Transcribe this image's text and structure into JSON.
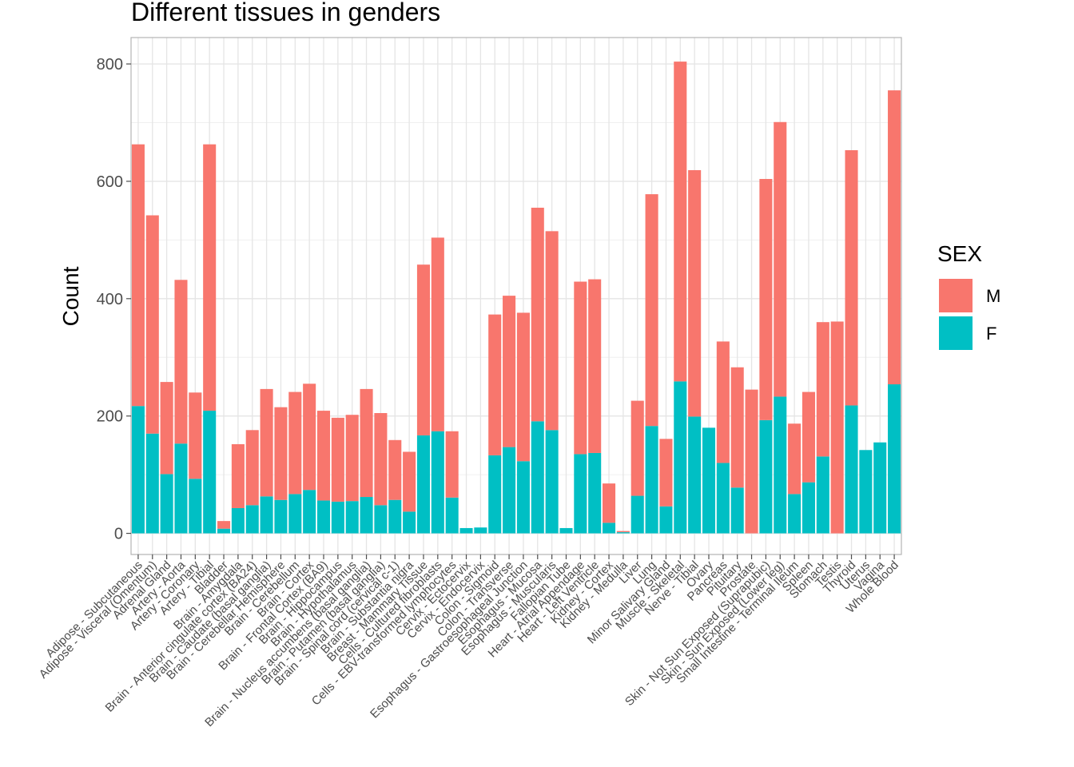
{
  "chart_data": {
    "type": "bar",
    "stacked": true,
    "title": "Different tissues in genders",
    "xlabel": "",
    "ylabel": "Count",
    "ylim": [
      -36,
      845
    ],
    "yticks": [
      0,
      200,
      400,
      600,
      800
    ],
    "grid": true,
    "legend": {
      "title": "SEX",
      "position": "right",
      "entries": [
        {
          "key": "M",
          "label": "M",
          "color": "#F8766D"
        },
        {
          "key": "F",
          "label": "F",
          "color": "#00BFC4"
        }
      ]
    },
    "categories": [
      "Adipose - Subcutaneous",
      "Adipose - Visceral (Omentum)",
      "Adrenal Gland",
      "Artery - Aorta",
      "Artery - Coronary",
      "Artery - Tibial",
      "Bladder",
      "Brain - Amygdala",
      "Brain - Anterior cingulate cortex (BA24)",
      "Brain - Caudate (basal ganglia)",
      "Brain - Cerebellar Hemisphere",
      "Brain - Cerebellum",
      "Brain - Cortex",
      "Brain - Frontal Cortex (BA9)",
      "Brain - Hippocampus",
      "Brain - Hypothalamus",
      "Brain - Nucleus accumbens (basal ganglia)",
      "Brain - Putamen (basal ganglia)",
      "Brain - Spinal cord (cervical c-1)",
      "Brain - Substantia nigra",
      "Breast - Mammary Tissue",
      "Cells - Cultured fibroblasts",
      "Cells - EBV-transformed lymphocytes",
      "Cervix - Ectocervix",
      "Cervix - Endocervix",
      "Colon - Sigmoid",
      "Colon - Transverse",
      "Esophagus - Gastroesophageal Junction",
      "Esophagus - Mucosa",
      "Esophagus - Muscularis",
      "Fallopian Tube",
      "Heart - Atrial Appendage",
      "Heart - Left Ventricle",
      "Kidney - Cortex",
      "Kidney - Medulla",
      "Liver",
      "Lung",
      "Minor Salivary Gland",
      "Muscle - Skeletal",
      "Nerve - Tibial",
      "Ovary",
      "Pancreas",
      "Pituitary",
      "Prostate",
      "Skin - Not Sun Exposed (Suprapubic)",
      "Skin - Sun Exposed (Lower leg)",
      "Small Intestine - Terminal Ileum",
      "Spleen",
      "Stomach",
      "Testis",
      "Thyroid",
      "Uterus",
      "Vagina",
      "Whole Blood"
    ],
    "series": [
      {
        "name": "F",
        "values": [
          217,
          170,
          101,
          153,
          93,
          209,
          8,
          43,
          48,
          63,
          57,
          67,
          74,
          56,
          54,
          55,
          62,
          48,
          57,
          37,
          167,
          174,
          61,
          9,
          10,
          133,
          147,
          123,
          191,
          176,
          9,
          135,
          137,
          18,
          2,
          64,
          183,
          46,
          259,
          199,
          180,
          120,
          78,
          0,
          193,
          233,
          67,
          87,
          131,
          0,
          218,
          142,
          155,
          254
        ]
      },
      {
        "name": "M",
        "values": [
          446,
          372,
          157,
          279,
          147,
          454,
          13,
          109,
          128,
          183,
          158,
          174,
          181,
          153,
          143,
          147,
          184,
          157,
          102,
          102,
          291,
          330,
          113,
          0,
          0,
          240,
          258,
          253,
          364,
          339,
          0,
          294,
          296,
          67,
          2,
          162,
          395,
          115,
          545,
          420,
          0,
          207,
          205,
          245,
          411,
          468,
          120,
          154,
          229,
          361,
          435,
          0,
          0,
          501
        ]
      }
    ]
  }
}
